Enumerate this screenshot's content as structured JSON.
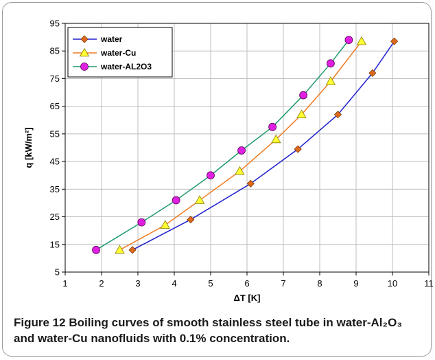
{
  "chart_data": {
    "type": "line",
    "xlabel": "ΔT [K]",
    "ylabel": "q [kW/m²]",
    "xlim": [
      1,
      11
    ],
    "ylim": [
      5,
      95
    ],
    "xticks": [
      "1",
      "2",
      "3",
      "4",
      "5",
      "6",
      "7",
      "8",
      "9",
      "10",
      "11"
    ],
    "yticks": [
      "5",
      "15",
      "25",
      "35",
      "45",
      "55",
      "65",
      "75",
      "85",
      "95"
    ],
    "grid": true,
    "legend_position": "top-left",
    "series": [
      {
        "name": "water",
        "color": "#1f1fcc",
        "marker": "diamond",
        "marker_color": "#e06a1c",
        "points": [
          [
            2.85,
            13
          ],
          [
            4.45,
            24
          ],
          [
            6.1,
            37
          ],
          [
            7.4,
            49.5
          ],
          [
            8.5,
            62
          ],
          [
            9.45,
            77
          ],
          [
            10.05,
            88.5
          ]
        ]
      },
      {
        "name": "water-Cu",
        "color": "#f07a20",
        "marker": "triangle",
        "marker_color": "#ffff33",
        "points": [
          [
            2.5,
            13
          ],
          [
            3.75,
            22
          ],
          [
            4.7,
            31
          ],
          [
            5.8,
            41.5
          ],
          [
            6.8,
            53
          ],
          [
            7.5,
            62
          ],
          [
            8.3,
            74
          ],
          [
            9.15,
            88.5
          ]
        ]
      },
      {
        "name": "water-AL2O3",
        "color": "#1f9a6a",
        "marker": "circle",
        "marker_color": "#e020e0",
        "points": [
          [
            1.85,
            13
          ],
          [
            3.1,
            23
          ],
          [
            4.05,
            31
          ],
          [
            5.0,
            40
          ],
          [
            5.85,
            49
          ],
          [
            6.7,
            57.5
          ],
          [
            7.55,
            69
          ],
          [
            8.3,
            80.5
          ],
          [
            8.8,
            89
          ]
        ]
      }
    ]
  },
  "caption": {
    "figure_label": "Figure 12",
    "text": "Boiling curves of smooth stainless steel tube in water-Al₂O₃ and water-Cu nanofluids with 0.1% concentration."
  }
}
